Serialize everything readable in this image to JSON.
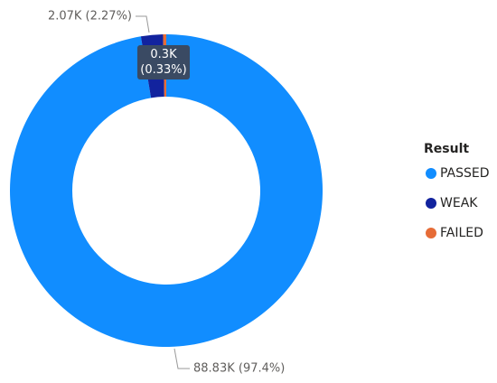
{
  "chart_data": {
    "type": "donut",
    "legend_title": "Result",
    "categories": [
      "PASSED",
      "WEAK",
      "FAILED"
    ],
    "values": [
      88.83,
      2.07,
      0.3
    ],
    "value_labels": [
      "88.83K (97.4%)",
      "2.07K (2.27%)",
      "0.3K (0.33%)"
    ],
    "colors": [
      "#118dff",
      "#12239e",
      "#e66c37"
    ],
    "legend": "right"
  }
}
